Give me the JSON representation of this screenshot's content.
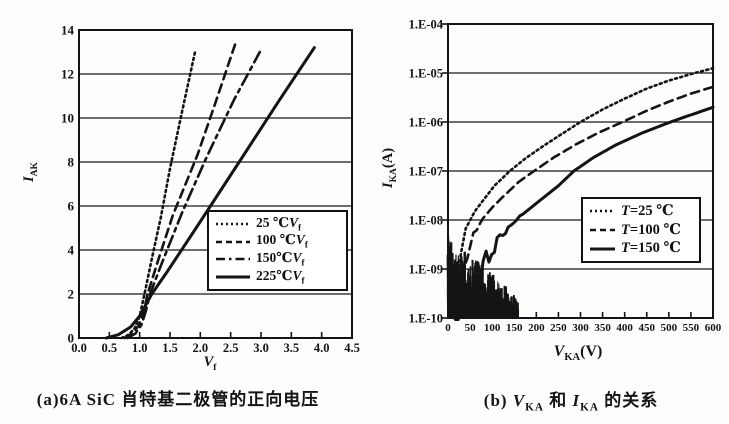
{
  "figure": {
    "caption_a": "(a)6A SiC 肖特基二极管的正向电压",
    "caption_b": {
      "prefix": "(b) ",
      "var1": "V",
      "sub1": "KA",
      "mid": " 和 ",
      "var2": "I",
      "sub2": "KA",
      "suffix": " 的关系"
    }
  },
  "colors": {
    "ink": "#141414",
    "background": "#fdfdfb",
    "grid": "#1a1a1a"
  },
  "chart_data": [
    {
      "id": "forward-voltage",
      "type": "line",
      "title": "",
      "xlabel": {
        "var": "V",
        "sub": "f",
        "rest": ""
      },
      "ylabel": {
        "var": "I",
        "sub": "AK",
        "rest": ""
      },
      "xlim": [
        0,
        4.5
      ],
      "ylim": [
        0,
        14
      ],
      "yscale": "linear",
      "grid": "horizontal",
      "xticks": [
        {
          "label": "0.0",
          "v": 0
        },
        {
          "label": "0.5",
          "v": 0.5
        },
        {
          "label": "1.0",
          "v": 1
        },
        {
          "label": "1.5",
          "v": 1.5
        },
        {
          "label": "2.0",
          "v": 2
        },
        {
          "label": "2.5",
          "v": 2.5
        },
        {
          "label": "3.0",
          "v": 3
        },
        {
          "label": "3.5",
          "v": 3.5
        },
        {
          "label": "4.0",
          "v": 4
        },
        {
          "label": "4.5",
          "v": 4.5
        }
      ],
      "yticks": [
        {
          "label": "0",
          "v": 0
        },
        {
          "label": "2",
          "v": 2
        },
        {
          "label": "4",
          "v": 4
        },
        {
          "label": "6",
          "v": 6
        },
        {
          "label": "8",
          "v": 8
        },
        {
          "label": "10",
          "v": 10
        },
        {
          "label": "12",
          "v": 12
        },
        {
          "label": "14",
          "v": 14
        }
      ],
      "legend_position": "inside-right",
      "legend": [
        {
          "style": "dotted",
          "parts": [
            {
              "t": "25 ℃"
            },
            {
              "t": "V",
              "i": true
            },
            {
              "t": "f",
              "s": true
            }
          ]
        },
        {
          "style": "dashed",
          "parts": [
            {
              "t": "100 ℃"
            },
            {
              "t": "V",
              "i": true
            },
            {
              "t": "f",
              "s": true
            }
          ]
        },
        {
          "style": "dashdot",
          "parts": [
            {
              "t": "150℃"
            },
            {
              "t": "V",
              "i": true
            },
            {
              "t": "f",
              "s": true
            }
          ]
        },
        {
          "style": "solid",
          "parts": [
            {
              "t": "225℃"
            },
            {
              "t": "V",
              "i": true
            },
            {
              "t": "f",
              "s": true
            }
          ]
        }
      ],
      "series": [
        {
          "name": "25C Vf",
          "style": "dotted",
          "points": [
            [
              0.7,
              0
            ],
            [
              0.82,
              0.15
            ],
            [
              0.92,
              0.45
            ],
            [
              1.0,
              1.0
            ],
            [
              1.08,
              2.0
            ],
            [
              1.2,
              3.6
            ],
            [
              1.35,
              5.5
            ],
            [
              1.5,
              7.7
            ],
            [
              1.7,
              10.3
            ],
            [
              1.92,
              13.1
            ]
          ]
        },
        {
          "name": "100C Vf",
          "style": "dashed",
          "points": [
            [
              0.75,
              0
            ],
            [
              0.88,
              0.2
            ],
            [
              0.98,
              0.55
            ],
            [
              1.06,
              1.1
            ],
            [
              1.13,
              2.0
            ],
            [
              1.3,
              3.5
            ],
            [
              1.55,
              5.6
            ],
            [
              1.95,
              8.3
            ],
            [
              2.25,
              10.7
            ],
            [
              2.58,
              13.4
            ]
          ]
        },
        {
          "name": "150C Vf",
          "style": "dashdot",
          "points": [
            [
              0.8,
              0
            ],
            [
              0.93,
              0.2
            ],
            [
              1.03,
              0.6
            ],
            [
              1.1,
              1.2
            ],
            [
              1.17,
              2.0
            ],
            [
              1.38,
              3.5
            ],
            [
              1.7,
              5.7
            ],
            [
              2.1,
              8.2
            ],
            [
              2.55,
              10.8
            ],
            [
              2.98,
              13.0
            ]
          ]
        },
        {
          "name": "225C Vf",
          "style": "solid",
          "points": [
            [
              0.45,
              0
            ],
            [
              0.65,
              0.15
            ],
            [
              0.85,
              0.5
            ],
            [
              1.0,
              1.0
            ],
            [
              1.2,
              2.0
            ],
            [
              1.45,
              3.0
            ],
            [
              1.93,
              5.0
            ],
            [
              2.64,
              8.0
            ],
            [
              3.3,
              10.8
            ],
            [
              3.88,
              13.2
            ]
          ]
        }
      ]
    },
    {
      "id": "leakage-current",
      "type": "line",
      "title": "",
      "xlabel": {
        "var": "V",
        "sub": "KA",
        "rest": "(V)"
      },
      "ylabel": {
        "var": "I",
        "sub": "KA",
        "rest": "(A)"
      },
      "xlim": [
        0,
        600
      ],
      "ylim": [
        1e-10,
        0.0001
      ],
      "yscale": "log",
      "grid": "horizontal",
      "xticks": [
        {
          "label": "0",
          "v": 0
        },
        {
          "label": "50",
          "v": 50
        },
        {
          "label": "100",
          "v": 100
        },
        {
          "label": "150",
          "v": 150
        },
        {
          "label": "200",
          "v": 200
        },
        {
          "label": "250",
          "v": 250
        },
        {
          "label": "300",
          "v": 300
        },
        {
          "label": "350",
          "v": 350
        },
        {
          "label": "400",
          "v": 400
        },
        {
          "label": "450",
          "v": 450
        },
        {
          "label": "500",
          "v": 500
        },
        {
          "label": "550",
          "v": 550
        },
        {
          "label": "600",
          "v": 600
        }
      ],
      "yticks": [
        {
          "label": "1.E-04",
          "v": 0.0001
        },
        {
          "label": "1.E-05",
          "v": 1e-05
        },
        {
          "label": "1.E-06",
          "v": 1e-06
        },
        {
          "label": "1.E-07",
          "v": 1e-07
        },
        {
          "label": "1.E-08",
          "v": 1e-08
        },
        {
          "label": "1.E-09",
          "v": 1e-09
        },
        {
          "label": "1.E-10",
          "v": 1e-10
        }
      ],
      "legend_position": "inside-bottom-right",
      "legend": [
        {
          "style": "dotted",
          "parts": [
            {
              "t": "T",
              "i": true
            },
            {
              "t": "=25 ℃"
            }
          ]
        },
        {
          "style": "dashed",
          "parts": [
            {
              "t": "T",
              "i": true
            },
            {
              "t": "=100 ℃"
            }
          ]
        },
        {
          "style": "solid",
          "parts": [
            {
              "t": "T",
              "i": true
            },
            {
              "t": "=150 ℃"
            }
          ]
        }
      ],
      "noise_region": {
        "x": [
          0,
          160
        ],
        "logy": [
          -10,
          -8.3
        ]
      },
      "series": [
        {
          "name": "T=25C",
          "style": "dotted",
          "noisy": true,
          "points": [
            [
              2,
              1.2e-10
            ],
            [
              8,
              2e-10
            ],
            [
              15,
              5e-10
            ],
            [
              22,
              1.2e-09
            ],
            [
              30,
              2.5e-09
            ],
            [
              40,
              6e-09
            ],
            [
              50,
              1.05e-08
            ],
            [
              65,
              1.7e-08
            ],
            [
              85,
              2.9e-08
            ],
            [
              105,
              5e-08
            ],
            [
              140,
              1e-07
            ],
            [
              175,
              1.8e-07
            ],
            [
              215,
              3.2e-07
            ],
            [
              255,
              5.5e-07
            ],
            [
              300,
              1e-06
            ],
            [
              350,
              1.8e-06
            ],
            [
              400,
              3e-06
            ],
            [
              450,
              4.8e-06
            ],
            [
              500,
              7e-06
            ],
            [
              550,
              9.5e-06
            ],
            [
              600,
              1.25e-05
            ]
          ]
        },
        {
          "name": "T=100C",
          "style": "dashed",
          "noisy": true,
          "points": [
            [
              5,
              1.2e-10
            ],
            [
              15,
              2.5e-10
            ],
            [
              25,
              6e-10
            ],
            [
              38,
              1.5e-09
            ],
            [
              50,
              3.5e-09
            ],
            [
              65,
              7e-09
            ],
            [
              80,
              1.1e-08
            ],
            [
              100,
              1.8e-08
            ],
            [
              125,
              3e-08
            ],
            [
              160,
              6e-08
            ],
            [
              195,
              1e-07
            ],
            [
              240,
              1.9e-07
            ],
            [
              290,
              3.5e-07
            ],
            [
              340,
              6e-07
            ],
            [
              395,
              1e-06
            ],
            [
              450,
              1.7e-06
            ],
            [
              500,
              2.6e-06
            ],
            [
              550,
              3.8e-06
            ],
            [
              600,
              5.2e-06
            ]
          ]
        },
        {
          "name": "T=150C",
          "style": "solid",
          "noisy": true,
          "points": [
            [
              10,
              1.2e-10
            ],
            [
              30,
              2e-10
            ],
            [
              55,
              5e-10
            ],
            [
              80,
              1.3e-09
            ],
            [
              105,
              3e-09
            ],
            [
              130,
              6e-09
            ],
            [
              155,
              1.05e-08
            ],
            [
              185,
              1.7e-08
            ],
            [
              215,
              2.8e-08
            ],
            [
              250,
              5e-08
            ],
            [
              285,
              1e-07
            ],
            [
              330,
              1.9e-07
            ],
            [
              380,
              3.4e-07
            ],
            [
              440,
              6e-07
            ],
            [
              510,
              1.05e-06
            ],
            [
              560,
              1.5e-06
            ],
            [
              600,
              2e-06
            ]
          ]
        }
      ]
    }
  ]
}
